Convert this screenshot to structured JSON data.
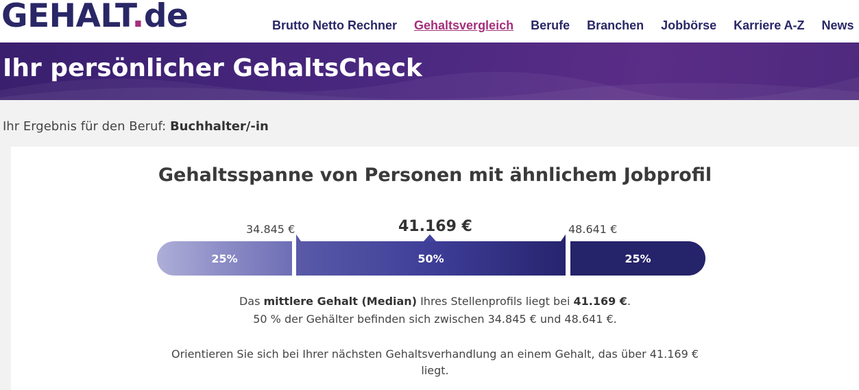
{
  "header": {
    "logo_text": "GEHALT",
    "logo_dot": ".",
    "logo_suffix": "de",
    "nav": [
      {
        "label": "Brutto Netto Rechner",
        "active": false
      },
      {
        "label": "Gehaltsvergleich",
        "active": true
      },
      {
        "label": "Berufe",
        "active": false
      },
      {
        "label": "Branchen",
        "active": false
      },
      {
        "label": "Jobbörse",
        "active": false
      },
      {
        "label": "Karriere A-Z",
        "active": false
      },
      {
        "label": "News",
        "active": false
      }
    ]
  },
  "banner": {
    "title": "Ihr persönlicher GehaltsCheck"
  },
  "result": {
    "prefix": "Ihr Ergebnis für den Beruf: ",
    "job": "Buchhalter/-in"
  },
  "salary": {
    "title": "Gehaltsspanne von Personen mit ähnlichem Jobprofil",
    "lower": "34.845 €",
    "median": "41.169 €",
    "upper": "48.641 €",
    "segments": [
      {
        "label": "25%",
        "share": 25
      },
      {
        "label": "50%",
        "share": 50
      },
      {
        "label": "25%",
        "share": 25
      }
    ],
    "desc1_a": "Das ",
    "desc1_b": "mittlere Gehalt (Median)",
    "desc1_c": " Ihres Stellenprofils liegt bei ",
    "desc1_d": "41.169 €",
    "desc1_e": ".",
    "desc2": "50 % der Gehälter befinden sich zwischen 34.845 € und 48.641 €.",
    "desc3_line1": "Orientieren Sie sich bei Ihrer nächsten Gehaltsverhandlung an einem Gehalt, das über 41.169 €",
    "desc3_line2": "liegt."
  },
  "colors": {
    "brand_navy": "#2a2767",
    "brand_magenta": "#a4307c",
    "banner_purple": "#4a2880"
  }
}
